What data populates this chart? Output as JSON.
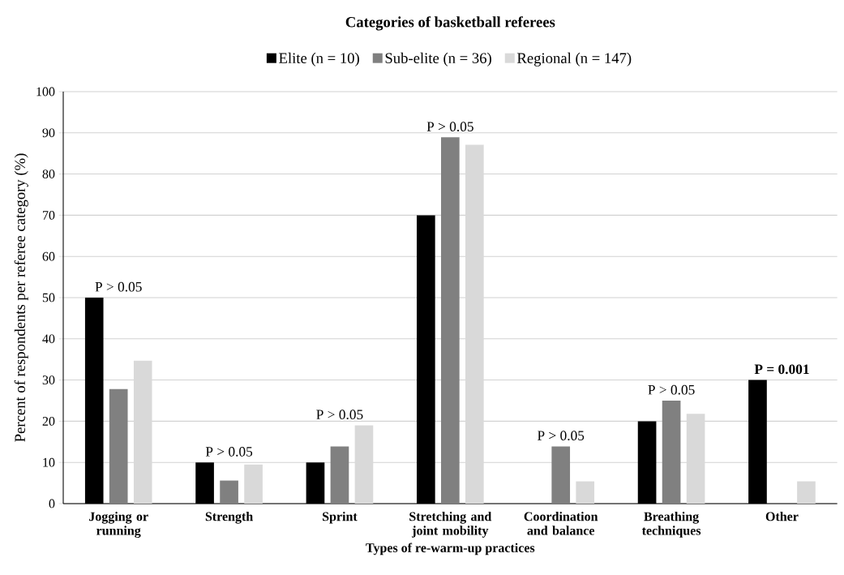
{
  "chart_data": {
    "type": "bar",
    "title": "Categories of basketball referees",
    "xlabel": "Types of re-warm-up practices",
    "ylabel": "Percent of respondents per referee category (%)",
    "categories": [
      "Jogging or running",
      "Strength",
      "Sprint",
      "Stretching and joint mobility",
      "Coordination and balance",
      "Breathing techniques",
      "Other"
    ],
    "series": [
      {
        "name": "Elite (n = 10)",
        "color": "#000000",
        "values": [
          50,
          10,
          10,
          70,
          0,
          20,
          30
        ]
      },
      {
        "name": "Sub-elite (n = 36)",
        "color": "#808080",
        "values": [
          27.8,
          5.6,
          13.9,
          88.9,
          13.9,
          25,
          0
        ]
      },
      {
        "name": "Regional (n = 147)",
        "color": "#d9d9d9",
        "values": [
          34.7,
          9.5,
          19,
          87.1,
          5.4,
          21.8,
          5.4
        ]
      }
    ],
    "ylim": [
      0,
      100
    ],
    "yticks": [
      0,
      10,
      20,
      30,
      40,
      50,
      60,
      70,
      80,
      90,
      100
    ],
    "grid": "y",
    "legend": "top",
    "annotations": [
      "P > 0.05",
      "P > 0.05",
      "P > 0.05",
      "P > 0.05",
      "P > 0.05",
      "P > 0.05",
      "**P = 0.001**"
    ]
  }
}
